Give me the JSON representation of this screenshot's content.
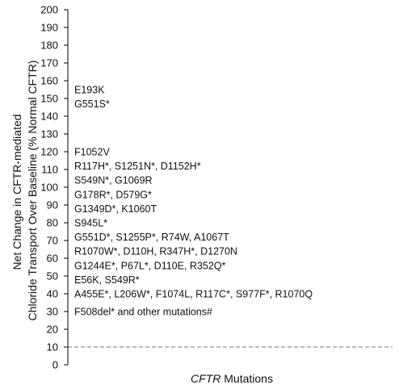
{
  "chart_data": {
    "type": "scatter",
    "title": "",
    "ylabel_line1": "Net Change in CFTR-mediated",
    "ylabel_line2": "Chloride Transport Over Baseline (% Normal CFTR)",
    "xlabel_italic": "CFTR",
    "xlabel_rest": " Mutations",
    "ylim": [
      0,
      200
    ],
    "yticks": [
      0,
      10,
      20,
      30,
      40,
      50,
      60,
      70,
      80,
      90,
      100,
      110,
      120,
      130,
      140,
      150,
      160,
      170,
      180,
      190,
      200
    ],
    "threshold": {
      "y": 10,
      "style": "dashed"
    },
    "grid": false,
    "legend": "none",
    "annotations": [
      {
        "y": 155,
        "text": "E193K"
      },
      {
        "y": 147,
        "text": "G551S*"
      },
      {
        "y": 120,
        "text": "F1052V"
      },
      {
        "y": 112,
        "text": "R117H*, S1251N*, D1152H*"
      },
      {
        "y": 104,
        "text": "S549N*, G1069R"
      },
      {
        "y": 96,
        "text": "G178R*, D579G*"
      },
      {
        "y": 88,
        "text": "G1349D*, K1060T"
      },
      {
        "y": 80,
        "text": "S945L*"
      },
      {
        "y": 72,
        "text": "G551D*, S1255P*, R74W, A1067T"
      },
      {
        "y": 64,
        "text": "R1070W*, D110H, R347H*, D1270N"
      },
      {
        "y": 56,
        "text": "G1244E*, P67L*, D110E, R352Q*"
      },
      {
        "y": 48,
        "text": "E56K, S549R*"
      },
      {
        "y": 40,
        "text": "A455E*, L206W*, F1074L, R117C*, S977F*, R1070Q"
      },
      {
        "y": 30,
        "text": "F508del* and other mutations#"
      }
    ]
  }
}
